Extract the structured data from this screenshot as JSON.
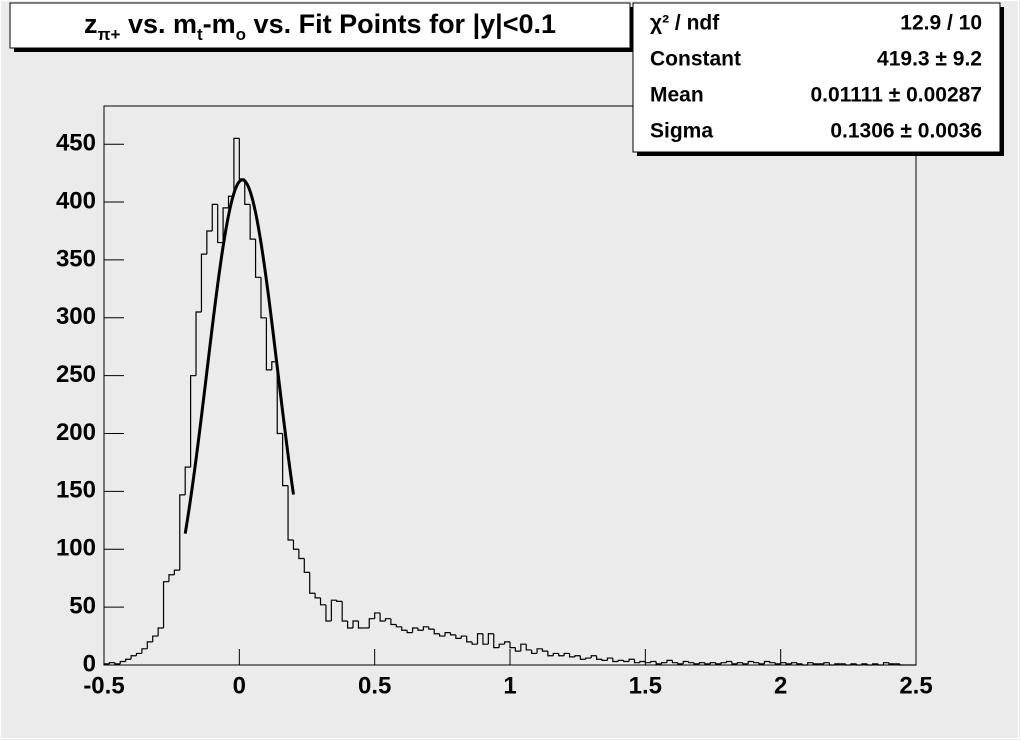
{
  "chart_data": {
    "type": "histogram",
    "title_parts": [
      {
        "text": "z"
      },
      {
        "text": "π+",
        "sub": true
      },
      {
        "text": " vs. m"
      },
      {
        "text": "t",
        "sub": true
      },
      {
        "text": "-m"
      },
      {
        "text": "o",
        "sub": true
      },
      {
        "text": " vs. Fit Points for |y|<0.1"
      }
    ],
    "bins": [
      -0.5,
      -0.48,
      -0.46,
      -0.44,
      -0.42,
      -0.4,
      -0.38,
      -0.36,
      -0.34,
      -0.32,
      -0.3,
      -0.28,
      -0.26,
      -0.24,
      -0.22,
      -0.2,
      -0.18,
      -0.16,
      -0.14,
      -0.12,
      -0.1,
      -0.08,
      -0.06,
      -0.04,
      -0.02,
      0,
      0.02,
      0.04,
      0.06,
      0.08,
      0.1,
      0.12,
      0.14,
      0.16,
      0.18,
      0.2,
      0.22,
      0.24,
      0.26,
      0.28,
      0.3,
      0.32,
      0.34,
      0.36,
      0.38,
      0.4,
      0.42,
      0.44,
      0.46,
      0.48,
      0.5,
      0.52,
      0.54,
      0.56,
      0.58,
      0.6,
      0.62,
      0.64,
      0.66,
      0.68,
      0.7,
      0.72,
      0.74,
      0.76,
      0.78,
      0.8,
      0.82,
      0.84,
      0.86,
      0.88,
      0.9,
      0.92,
      0.94,
      0.96,
      0.98,
      1,
      1.02,
      1.04,
      1.06,
      1.08,
      1.1,
      1.12,
      1.14,
      1.16,
      1.18,
      1.2,
      1.22,
      1.24,
      1.26,
      1.28,
      1.3,
      1.32,
      1.34,
      1.36,
      1.38,
      1.4,
      1.42,
      1.44,
      1.46,
      1.48,
      1.5,
      1.52,
      1.54,
      1.56,
      1.58,
      1.6,
      1.62,
      1.64,
      1.66,
      1.68,
      1.7,
      1.72,
      1.74,
      1.76,
      1.78,
      1.8,
      1.82,
      1.84,
      1.86,
      1.88,
      1.9,
      1.92,
      1.94,
      1.96,
      1.98,
      2,
      2.02,
      2.04,
      2.06,
      2.08,
      2.1,
      2.12,
      2.14,
      2.16,
      2.18,
      2.2,
      2.22,
      2.24,
      2.26,
      2.28,
      2.3,
      2.32,
      2.34,
      2.36,
      2.38,
      2.4,
      2.42,
      2.44,
      2.46,
      2.48,
      2.5
    ],
    "values": [
      1,
      2,
      1,
      3,
      5,
      8,
      10,
      14,
      20,
      25,
      32,
      72,
      78,
      82,
      147,
      171,
      250,
      305,
      355,
      375,
      398,
      365,
      395,
      405,
      455,
      420,
      398,
      368,
      335,
      300,
      255,
      262,
      200,
      155,
      108,
      100,
      92,
      80,
      62,
      58,
      52,
      38,
      56,
      55,
      38,
      32,
      38,
      32,
      32,
      40,
      45,
      38,
      40,
      35,
      33,
      30,
      28,
      32,
      30,
      33,
      31,
      27,
      25,
      28,
      26,
      23,
      25,
      20,
      18,
      27,
      18,
      27,
      15,
      18,
      20,
      15,
      12,
      18,
      13,
      10,
      14,
      12,
      8,
      10,
      8,
      10,
      7,
      8,
      5,
      6,
      8,
      5,
      4,
      6,
      3,
      4,
      3,
      5,
      2,
      3,
      2,
      3,
      1,
      2,
      4,
      2,
      1,
      3,
      2,
      1,
      2,
      1,
      2,
      1,
      2,
      3,
      1,
      2,
      1,
      3,
      2,
      1,
      3,
      2,
      1,
      2,
      1,
      2,
      1,
      0,
      2,
      1,
      1,
      2,
      0,
      1,
      1,
      0,
      1,
      0,
      1,
      0,
      1,
      0,
      2,
      1,
      1,
      0,
      0,
      0
    ],
    "color": "#000000",
    "fit": {
      "constant": 419.3,
      "mean": 0.01111,
      "sigma": 0.1306,
      "range": [
        -0.2,
        0.2
      ],
      "color": "#000000"
    },
    "stats": [
      {
        "label": "χ² / ndf",
        "value": "12.9 / 10"
      },
      {
        "label": "Constant",
        "value": "419.3 ± 9.2"
      },
      {
        "label": "Mean",
        "value": "0.01111 ± 0.00287"
      },
      {
        "label": "Sigma",
        "value": "0.1306 ± 0.0036"
      }
    ],
    "xlim": [
      -0.5,
      2.5
    ],
    "xticks": [
      -0.5,
      0,
      0.5,
      1,
      1.5,
      2,
      2.5
    ],
    "ylim": [
      0,
      483
    ],
    "yticks": [
      0,
      50,
      100,
      150,
      200,
      250,
      300,
      350,
      400,
      450
    ]
  }
}
